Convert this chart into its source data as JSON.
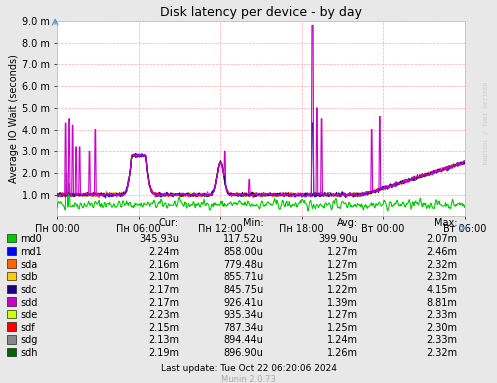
{
  "title": "Disk latency per device - by day",
  "ylabel": "Average IO Wait (seconds)",
  "background_color": "#e8e8e8",
  "plot_bg_color": "#ffffff",
  "grid_color": "#ffaaaa",
  "xticklabels": [
    "Пн 00:00",
    "Пн 06:00",
    "Пн 12:00",
    "Пн 18:00",
    "Вт 00:00",
    "Вт 06:00"
  ],
  "ytick_labels": [
    "1.0 m",
    "2.0 m",
    "3.0 m",
    "4.0 m",
    "5.0 m",
    "6.0 m",
    "7.0 m",
    "8.0 m",
    "9.0 m"
  ],
  "ytick_values": [
    0.001,
    0.002,
    0.003,
    0.004,
    0.005,
    0.006,
    0.007,
    0.008,
    0.009
  ],
  "ylim": [
    0,
    0.009
  ],
  "legend_entries": [
    {
      "label": "md0",
      "color": "#00cc00"
    },
    {
      "label": "md1",
      "color": "#0000ff"
    },
    {
      "label": "sda",
      "color": "#ff6600"
    },
    {
      "label": "sdb",
      "color": "#ffcc00"
    },
    {
      "label": "sdc",
      "color": "#1a0080"
    },
    {
      "label": "sdd",
      "color": "#cc00cc"
    },
    {
      "label": "sde",
      "color": "#ccff00"
    },
    {
      "label": "sdf",
      "color": "#ff0000"
    },
    {
      "label": "sdg",
      "color": "#888888"
    },
    {
      "label": "sdh",
      "color": "#006600"
    }
  ],
  "stats": [
    {
      "label": "md0",
      "cur": "345.93u",
      "min": "117.52u",
      "avg": "399.90u",
      "max": "2.07m"
    },
    {
      "label": "md1",
      "cur": "2.24m",
      "min": "858.00u",
      "avg": "1.27m",
      "max": "2.46m"
    },
    {
      "label": "sda",
      "cur": "2.16m",
      "min": "779.48u",
      "avg": "1.27m",
      "max": "2.32m"
    },
    {
      "label": "sdb",
      "cur": "2.10m",
      "min": "855.71u",
      "avg": "1.25m",
      "max": "2.32m"
    },
    {
      "label": "sdc",
      "cur": "2.17m",
      "min": "845.75u",
      "avg": "1.22m",
      "max": "4.15m"
    },
    {
      "label": "sdd",
      "cur": "2.17m",
      "min": "926.41u",
      "avg": "1.39m",
      "max": "8.81m"
    },
    {
      "label": "sde",
      "cur": "2.23m",
      "min": "935.34u",
      "avg": "1.27m",
      "max": "2.33m"
    },
    {
      "label": "sdf",
      "cur": "2.15m",
      "min": "787.34u",
      "avg": "1.25m",
      "max": "2.30m"
    },
    {
      "label": "sdg",
      "cur": "2.13m",
      "min": "894.44u",
      "avg": "1.24m",
      "max": "2.33m"
    },
    {
      "label": "sdh",
      "cur": "2.19m",
      "min": "896.90u",
      "avg": "1.26m",
      "max": "2.32m"
    }
  ],
  "last_update": "Last update: Tue Oct 22 06:20:06 2024",
  "munin_version": "Munin 2.0.73",
  "watermark": "RRDTOOL / TOBI OETIKER"
}
